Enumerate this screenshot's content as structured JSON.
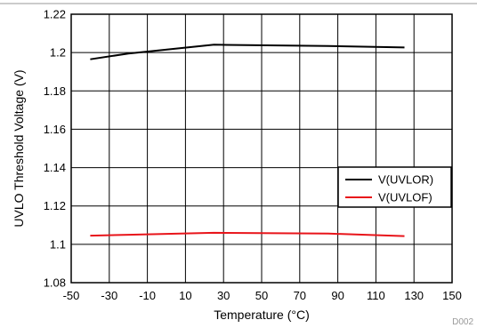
{
  "chart_data": {
    "type": "line",
    "title": "",
    "xlabel": "Temperature (°C)",
    "ylabel": "UVLO Threshold Voltage (V)",
    "xlim": [
      -50,
      150
    ],
    "ylim": [
      1.08,
      1.22
    ],
    "xticks": [
      -50,
      -30,
      -10,
      10,
      30,
      50,
      70,
      90,
      110,
      130,
      150
    ],
    "xtick_labels": [
      "-50",
      "-30",
      "-10",
      "10",
      "30",
      "50",
      "70",
      "90",
      "110",
      "130",
      "150"
    ],
    "yticks": [
      1.08,
      1.1,
      1.12,
      1.14,
      1.16,
      1.18,
      1.2,
      1.22
    ],
    "ytick_labels": [
      "1.08",
      "1.1",
      "1.12",
      "1.14",
      "1.16",
      "1.18",
      "1.2",
      "1.22"
    ],
    "grid": true,
    "legend_position": "right",
    "series": [
      {
        "name": "V(UVLOR)",
        "color": "#000000",
        "x": [
          -40,
          -20,
          25,
          85,
          125
        ],
        "y": [
          1.1965,
          1.1995,
          1.2041,
          1.2034,
          1.2027
        ]
      },
      {
        "name": "V(UVLOF)",
        "color": "#e8141a",
        "x": [
          -40,
          -20,
          25,
          85,
          125
        ],
        "y": [
          1.1045,
          1.105,
          1.106,
          1.1056,
          1.1043
        ]
      }
    ]
  },
  "figure_id": "D002"
}
